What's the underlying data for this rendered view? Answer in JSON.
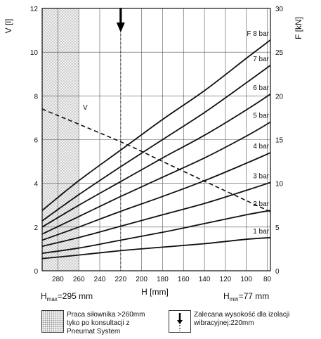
{
  "chart_data": {
    "type": "line",
    "x_label": "H [mm]",
    "x_reversed": true,
    "x_range": [
      295,
      77
    ],
    "x_ticks": [
      280,
      260,
      240,
      220,
      200,
      180,
      160,
      140,
      120,
      100,
      80
    ],
    "y_left_label": "V [l]",
    "y_left_range": [
      0,
      12
    ],
    "y_left_ticks": [
      0,
      2,
      4,
      6,
      8,
      10,
      12
    ],
    "y_right_label": "F [kN]",
    "y_right_range": [
      0,
      30
    ],
    "y_right_ticks": [
      0,
      5,
      10,
      15,
      20,
      25,
      30
    ],
    "grid": true,
    "h_max_label": "H",
    "h_max_sub": "max",
    "h_max_value": "=295 mm",
    "h_min_label": "H",
    "h_min_sub": "min",
    "h_min_value": "=77 mm",
    "hatched_region": [
      295,
      260
    ],
    "recommended_height": 220,
    "volume_series": {
      "name": "V",
      "axis": "left",
      "points": [
        [
          295,
          7.4
        ],
        [
          220,
          5.9
        ],
        [
          180,
          5.0
        ],
        [
          140,
          4.1
        ],
        [
          77,
          2.7
        ]
      ]
    },
    "force_series": [
      {
        "name": "1 bar",
        "axis": "right",
        "points": [
          [
            295,
            1.4
          ],
          [
            260,
            1.8
          ],
          [
            220,
            2.3
          ],
          [
            180,
            2.7
          ],
          [
            140,
            3.1
          ],
          [
            100,
            3.6
          ],
          [
            77,
            3.8
          ]
        ]
      },
      {
        "name": "2 bar",
        "axis": "right",
        "points": [
          [
            295,
            2.0
          ],
          [
            260,
            2.6
          ],
          [
            220,
            3.5
          ],
          [
            180,
            4.4
          ],
          [
            140,
            5.4
          ],
          [
            100,
            6.4
          ],
          [
            77,
            6.9
          ]
        ]
      },
      {
        "name": "3 bar",
        "axis": "right",
        "points": [
          [
            295,
            2.8
          ],
          [
            260,
            3.8
          ],
          [
            220,
            5.1
          ],
          [
            180,
            6.4
          ],
          [
            140,
            7.7
          ],
          [
            100,
            9.2
          ],
          [
            77,
            10.1
          ]
        ]
      },
      {
        "name": "4 bar",
        "axis": "right",
        "points": [
          [
            295,
            3.5
          ],
          [
            260,
            5.0
          ],
          [
            220,
            6.8
          ],
          [
            180,
            8.5
          ],
          [
            140,
            10.3
          ],
          [
            100,
            12.3
          ],
          [
            77,
            13.5
          ]
        ]
      },
      {
        "name": "5 bar",
        "axis": "right",
        "points": [
          [
            295,
            4.2
          ],
          [
            260,
            6.2
          ],
          [
            220,
            8.5
          ],
          [
            180,
            10.7
          ],
          [
            140,
            12.9
          ],
          [
            100,
            15.4
          ],
          [
            77,
            17.0
          ]
        ]
      },
      {
        "name": "6 bar",
        "axis": "right",
        "points": [
          [
            295,
            5.0
          ],
          [
            260,
            7.5
          ],
          [
            220,
            10.2
          ],
          [
            180,
            12.9
          ],
          [
            140,
            15.5
          ],
          [
            100,
            18.4
          ],
          [
            77,
            20.2
          ]
        ]
      },
      {
        "name": "7 bar",
        "axis": "right",
        "points": [
          [
            295,
            5.7
          ],
          [
            260,
            8.7
          ],
          [
            220,
            11.9
          ],
          [
            180,
            15.0
          ],
          [
            140,
            18.1
          ],
          [
            100,
            21.5
          ],
          [
            77,
            23.5
          ]
        ]
      },
      {
        "name": "F 8 bar",
        "axis": "right",
        "points": [
          [
            295,
            6.9
          ],
          [
            260,
            10.3
          ],
          [
            220,
            13.8
          ],
          [
            180,
            17.3
          ],
          [
            140,
            20.6
          ],
          [
            100,
            24.3
          ],
          [
            77,
            26.4
          ]
        ]
      }
    ],
    "volume_label": "V"
  },
  "legend": {
    "hatched_text": [
      "Praca siłownika >260mm",
      "tyko po konsultacji z",
      "Pneumat System"
    ],
    "arrow_text": [
      "Zalecana wysokość dla izolacji",
      "wibracyjnej:220mm"
    ]
  }
}
